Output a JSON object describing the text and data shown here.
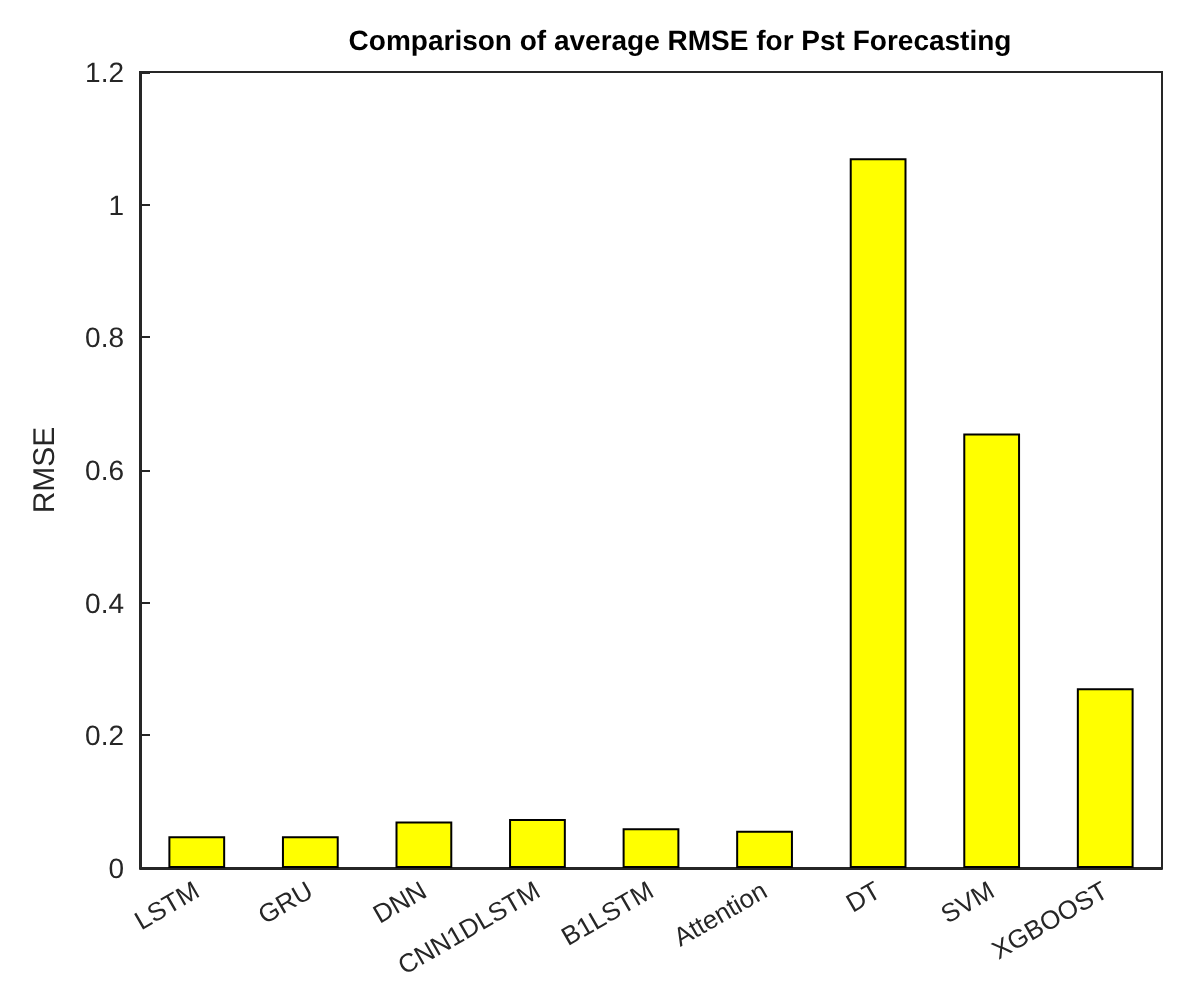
{
  "chart_data": {
    "type": "bar",
    "title": "Comparison of average RMSE for Pst Forecasting",
    "ylabel": "RMSE",
    "categories": [
      "LSTM",
      "GRU",
      "DNN",
      "CNN1DLSTM",
      "B1LSTM",
      "Attention",
      "DT",
      "SVM",
      "XGBOOST"
    ],
    "values": [
      0.048,
      0.048,
      0.07,
      0.074,
      0.06,
      0.056,
      1.07,
      0.655,
      0.271
    ],
    "color": "#ffff00",
    "ylim": [
      0,
      1.2
    ],
    "yticks": [
      0,
      0.2,
      0.4,
      0.6,
      0.8,
      1,
      1.2
    ],
    "grid": false
  }
}
